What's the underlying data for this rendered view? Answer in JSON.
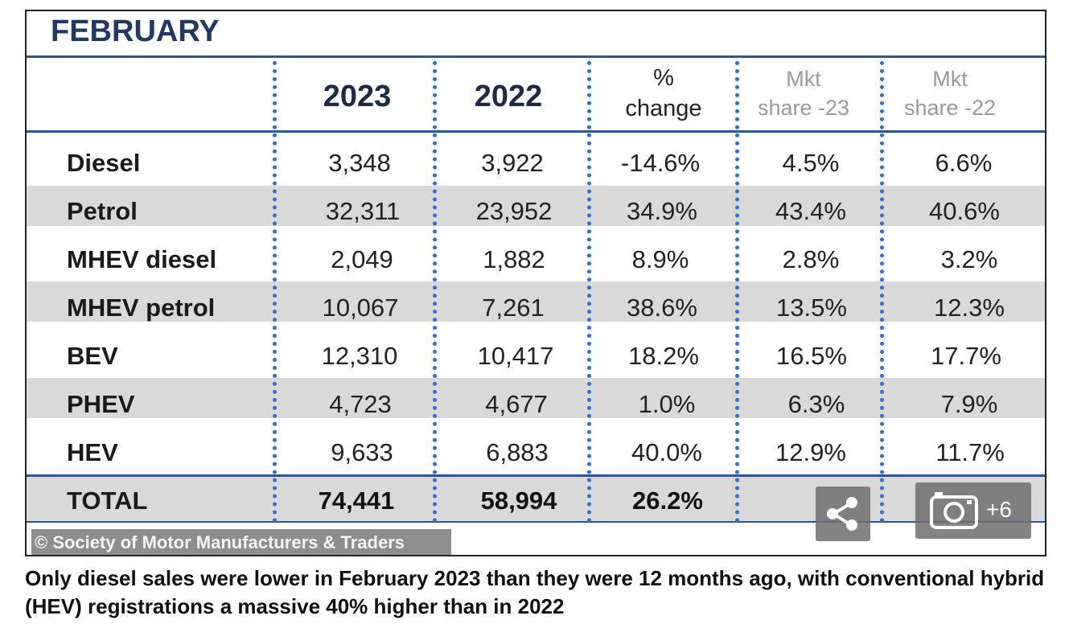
{
  "table": {
    "title": "FEBRUARY",
    "headers": {
      "col_2023": "2023",
      "col_2022": "2022",
      "pct_line1": "%",
      "pct_line2": "change",
      "mkt23_line1": "Mkt",
      "mkt23_line2": "share -23",
      "mkt22_line1": "Mkt",
      "mkt22_line2": "share -22"
    },
    "rows": [
      {
        "label": "Diesel",
        "y2023": "3,348",
        "y2022": "3,922",
        "change": "-14.6%",
        "share23": "4.5%",
        "share22": "6.6%"
      },
      {
        "label": "Petrol",
        "y2023": "32,311",
        "y2022": "23,952",
        "change": "34.9%",
        "share23": "43.4%",
        "share22": "40.6%"
      },
      {
        "label": "MHEV diesel",
        "y2023": "2,049",
        "y2022": "1,882",
        "change": "8.9%",
        "share23": "2.8%",
        "share22": "3.2%"
      },
      {
        "label": "MHEV petrol",
        "y2023": "10,067",
        "y2022": "7,261",
        "change": "38.6%",
        "share23": "13.5%",
        "share22": "12.3%"
      },
      {
        "label": "BEV",
        "y2023": "12,310",
        "y2022": "10,417",
        "change": "18.2%",
        "share23": "16.5%",
        "share22": "17.7%"
      },
      {
        "label": "PHEV",
        "y2023": "4,723",
        "y2022": "4,677",
        "change": "1.0%",
        "share23": "6.3%",
        "share22": "7.9%"
      },
      {
        "label": "HEV",
        "y2023": "9,633",
        "y2022": "6,883",
        "change": "40.0%",
        "share23": "12.9%",
        "share22": "11.7%"
      }
    ],
    "total": {
      "label": "TOTAL",
      "y2023": "74,441",
      "y2022": "58,994",
      "change": "26.2%"
    },
    "credit": "© Society of Motor Manufacturers & Traders",
    "colors": {
      "accent": "#2e5597",
      "title": "#1f3864",
      "band": "#d9d9d9",
      "separator": "#2e6fd6"
    }
  },
  "overlay": {
    "share_icon": "share-icon",
    "gallery_icon": "camera-icon",
    "gallery_count": "+6"
  },
  "caption": "Only diesel sales were lower in February 2023 than they were 12 months ago, with conventional hybrid (HEV) registrations a massive 40% higher than in 2022"
}
